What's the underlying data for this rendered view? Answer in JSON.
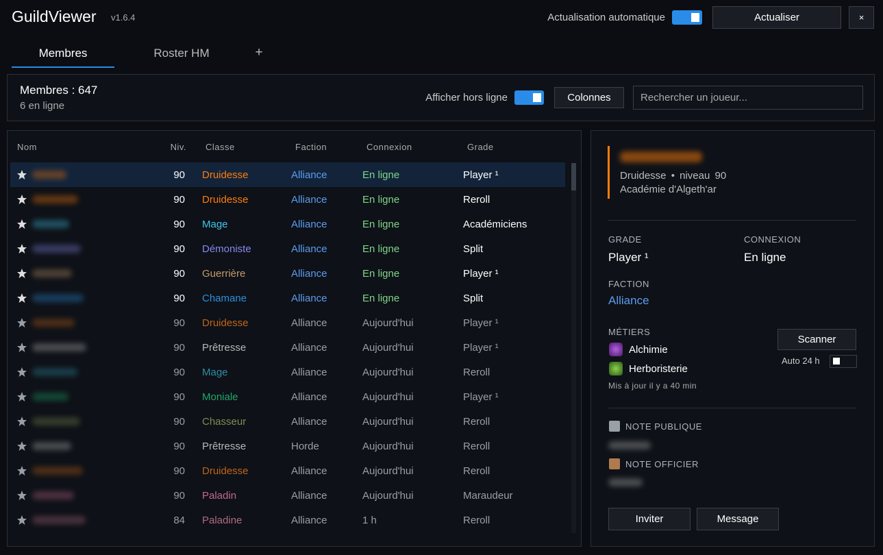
{
  "app": {
    "title": "GuildViewer",
    "version": "v1.6.4",
    "auto_refresh_label": "Actualisation automatique",
    "auto_refresh_on": true,
    "refresh_button": "Actualiser",
    "close_button": "×"
  },
  "tabs": {
    "items": [
      "Membres",
      "Roster HM",
      "+"
    ],
    "active": 0
  },
  "summary": {
    "members": "Membres : 647",
    "online": "6 en ligne",
    "show_offline_label": "Afficher hors ligne",
    "show_offline_on": true,
    "columns_button": "Colonnes",
    "search_placeholder": "Rechercher un joueur..."
  },
  "table": {
    "headers": [
      "Nom",
      "Niv.",
      "Classe",
      "Faction",
      "Connexion",
      "Grade"
    ],
    "selected_row": 0,
    "rows": [
      {
        "level": 90,
        "class": "Druidesse",
        "class_color": "#ff7c0a",
        "faction": "Alliance",
        "connection": "En ligne",
        "grade": "Player ¹",
        "online": true
      },
      {
        "level": 90,
        "class": "Druidesse",
        "class_color": "#ff7c0a",
        "faction": "Alliance",
        "connection": "En ligne",
        "grade": "Reroll",
        "online": true
      },
      {
        "level": 90,
        "class": "Mage",
        "class_color": "#3fc7eb",
        "faction": "Alliance",
        "connection": "En ligne",
        "grade": "Académiciens",
        "online": true
      },
      {
        "level": 90,
        "class": "Démoniste",
        "class_color": "#8788ee",
        "faction": "Alliance",
        "connection": "En ligne",
        "grade": "Split",
        "online": true
      },
      {
        "level": 90,
        "class": "Guerrière",
        "class_color": "#c69b6d",
        "faction": "Alliance",
        "connection": "En ligne",
        "grade": "Player ¹",
        "online": true
      },
      {
        "level": 90,
        "class": "Chamane",
        "class_color": "#2d8fe0",
        "faction": "Alliance",
        "connection": "En ligne",
        "grade": "Split",
        "online": true
      },
      {
        "level": 90,
        "class": "Druidesse",
        "class_color": "#c0641a",
        "faction": "Alliance",
        "connection": "Aujourd'hui",
        "grade": "Player ¹",
        "online": false
      },
      {
        "level": 90,
        "class": "Prêtresse",
        "class_color": "#b8b8b8",
        "faction": "Alliance",
        "connection": "Aujourd'hui",
        "grade": "Player ¹",
        "online": false
      },
      {
        "level": 90,
        "class": "Mage",
        "class_color": "#2f8ea6",
        "faction": "Alliance",
        "connection": "Aujourd'hui",
        "grade": "Reroll",
        "online": false
      },
      {
        "level": 90,
        "class": "Moniale",
        "class_color": "#1fa86a",
        "faction": "Alliance",
        "connection": "Aujourd'hui",
        "grade": "Player ¹",
        "online": false
      },
      {
        "level": 90,
        "class": "Chasseur",
        "class_color": "#7d8f52",
        "faction": "Alliance",
        "connection": "Aujourd'hui",
        "grade": "Reroll",
        "online": false
      },
      {
        "level": 90,
        "class": "Prêtresse",
        "class_color": "#b8b8b8",
        "faction": "Horde",
        "connection": "Aujourd'hui",
        "grade": "Reroll",
        "online": false
      },
      {
        "level": 90,
        "class": "Druidesse",
        "class_color": "#c0641a",
        "faction": "Alliance",
        "connection": "Aujourd'hui",
        "grade": "Reroll",
        "online": false
      },
      {
        "level": 90,
        "class": "Paladin",
        "class_color": "#c06b8a",
        "faction": "Alliance",
        "connection": "Aujourd'hui",
        "grade": "Maraudeur",
        "online": false
      },
      {
        "level": 84,
        "class": "Paladine",
        "class_color": "#b06b85",
        "faction": "Alliance",
        "connection": "1 h",
        "grade": "Reroll",
        "online": false
      }
    ]
  },
  "detail": {
    "subtitle": "Druidesse • niveau 90",
    "guild": "Académie d'Algeth'ar",
    "grade_label": "GRADE",
    "grade": "Player ¹",
    "connection_label": "CONNEXION",
    "connection": "En ligne",
    "faction_label": "FACTION",
    "faction": "Alliance",
    "professions_label": "MÉTIERS",
    "professions": [
      "Alchimie",
      "Herboristerie"
    ],
    "updated": "Mis à jour il y a 40 min",
    "scan_button": "Scanner",
    "auto_label": "Auto 24 h",
    "public_note_label": "NOTE PUBLIQUE",
    "officer_note_label": "NOTE OFFICIER",
    "invite_button": "Inviter",
    "message_button": "Message"
  }
}
